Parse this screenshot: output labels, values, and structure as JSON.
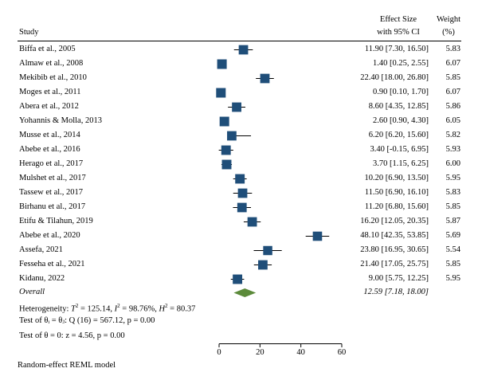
{
  "chart_data": {
    "type": "forest",
    "header": {
      "study": "Study",
      "effect_line1": "Effect Size",
      "effect_line2": "with 95% CI",
      "weight_line1": "Weight",
      "weight_line2": "(%)"
    },
    "studies": [
      {
        "label": "Biffa et al., 2005",
        "es": 11.9,
        "lo": 7.3,
        "hi": 16.5,
        "ci_text": "11.90 [7.30, 16.50]",
        "weight": "5.83"
      },
      {
        "label": "Almaw et al., 2008",
        "es": 1.4,
        "lo": 0.25,
        "hi": 2.55,
        "ci_text": "1.40 [0.25, 2.55]",
        "weight": "6.07"
      },
      {
        "label": "Mekibib et al., 2010",
        "es": 22.4,
        "lo": 18.0,
        "hi": 26.8,
        "ci_text": "22.40 [18.00, 26.80]",
        "weight": "5.85"
      },
      {
        "label": "Moges et al., 2011",
        "es": 0.9,
        "lo": 0.1,
        "hi": 1.7,
        "ci_text": "0.90 [0.10, 1.70]",
        "weight": "6.07"
      },
      {
        "label": "Abera et al., 2012",
        "es": 8.6,
        "lo": 4.35,
        "hi": 12.85,
        "ci_text": "8.60 [4.35, 12.85]",
        "weight": "5.86"
      },
      {
        "label": "Yohannis & Molla, 2013",
        "es": 2.6,
        "lo": 0.9,
        "hi": 4.3,
        "ci_text": "2.60 [0.90, 4.30]",
        "weight": "6.05"
      },
      {
        "label": "Musse et al., 2014",
        "es": 6.2,
        "lo": 6.2,
        "hi": 15.6,
        "ci_text": "6.20 [6.20, 15.60]",
        "weight": "5.82"
      },
      {
        "label": "Abebe et al., 2016",
        "es": 3.4,
        "lo": -0.15,
        "hi": 6.95,
        "ci_text": "3.40 [-0.15, 6.95]",
        "weight": "5.93"
      },
      {
        "label": "Herago et al., 2017",
        "es": 3.7,
        "lo": 1.15,
        "hi": 6.25,
        "ci_text": "3.70 [1.15, 6.25]",
        "weight": "6.00"
      },
      {
        "label": "Mulshet et al., 2017",
        "es": 10.2,
        "lo": 6.9,
        "hi": 13.5,
        "ci_text": "10.20 [6.90, 13.50]",
        "weight": "5.95"
      },
      {
        "label": "Tassew et al., 2017",
        "es": 11.5,
        "lo": 6.9,
        "hi": 16.1,
        "ci_text": "11.50 [6.90, 16.10]",
        "weight": "5.83"
      },
      {
        "label": "Birhanu et al., 2017",
        "es": 11.2,
        "lo": 6.8,
        "hi": 15.6,
        "ci_text": "11.20 [6.80, 15.60]",
        "weight": "5.85"
      },
      {
        "label": "Etifu & Tilahun, 2019",
        "es": 16.2,
        "lo": 12.05,
        "hi": 20.35,
        "ci_text": "16.20 [12.05, 20.35]",
        "weight": "5.87"
      },
      {
        "label": "Abebe et al., 2020",
        "es": 48.1,
        "lo": 42.35,
        "hi": 53.85,
        "ci_text": "48.10 [42.35, 53.85]",
        "weight": "5.69"
      },
      {
        "label": "Assefa, 2021",
        "es": 23.8,
        "lo": 16.95,
        "hi": 30.65,
        "ci_text": "23.80 [16.95, 30.65]",
        "weight": "5.54"
      },
      {
        "label": "Fesseha et al., 2021",
        "es": 21.4,
        "lo": 17.05,
        "hi": 25.75,
        "ci_text": "21.40 [17.05, 25.75]",
        "weight": "5.85"
      },
      {
        "label": "Kidanu, 2022",
        "es": 9.0,
        "lo": 5.75,
        "hi": 12.25,
        "ci_text": "9.00 [5.75, 12.25]",
        "weight": "5.95"
      }
    ],
    "overall": {
      "label": "Overall",
      "es": 12.59,
      "lo": 7.18,
      "hi": 18.0,
      "ci_text": "12.59 [7.18, 18.00]"
    },
    "heterogeneity": {
      "prefix": "Heterogeneity: ",
      "tau2": "T",
      "tau2_value": " = 125.14, ",
      "i2": "I",
      "i2_value": " = 98.76%, ",
      "h2": "H",
      "h2_value": " = 80.37"
    },
    "test_homogeneity": "Test of θᵢ = θⱼ: Q (16) = 567.12, p = 0.00",
    "test_effect": "Test of θ = 0: z = 4.56, p = 0.00",
    "x_axis": {
      "ticks": [
        0,
        20,
        40,
        60
      ],
      "xlim": [
        0,
        60
      ]
    },
    "footnote": "Random-effect REML model",
    "colors": {
      "marker": "#1f4e79",
      "diamond": "#5b8a3a",
      "line": "#000000"
    }
  }
}
